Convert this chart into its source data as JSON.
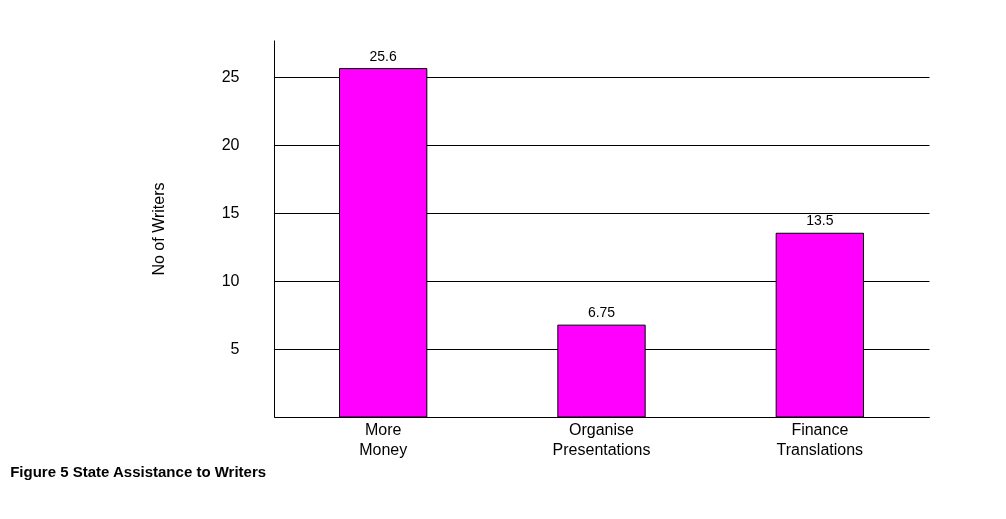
{
  "chart_data": {
    "type": "bar",
    "title": "Figure 5   State Assistance to Writers",
    "ylabel": "No of Writers",
    "categories": [
      "More Money",
      "Organise Presentations",
      "Finance Translations"
    ],
    "values": [
      25.6,
      6.75,
      13.5
    ],
    "color": "#ff00ff",
    "ylim": [
      0,
      27.7
    ],
    "yticks": [
      {
        "value": 0,
        "label": null
      },
      5,
      10,
      15,
      20,
      25
    ],
    "grid": "y",
    "data_labels": true
  }
}
